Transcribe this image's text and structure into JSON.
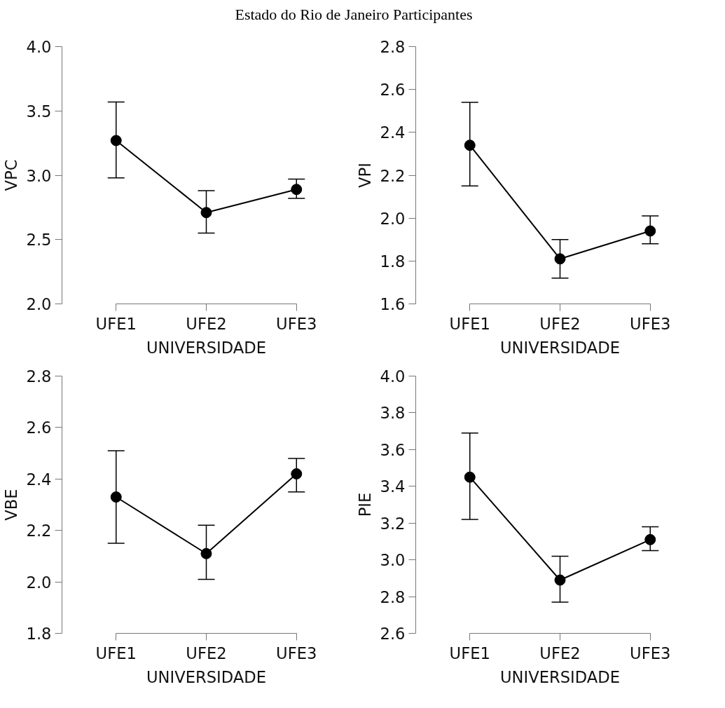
{
  "chart_data": [
    {
      "type": "line",
      "title": "Estado do Rio de Janeiro Participantes",
      "categories": [
        "UFE1",
        "UFE2",
        "UFE3"
      ],
      "xlabel": "UNIVERSIDADE",
      "ylabel": "VPC",
      "ylim": [
        2.0,
        4.0
      ],
      "yticks": [
        {
          "value": 2.0,
          "label": "2.0"
        },
        2.5,
        {
          "value": 3.0,
          "label": "3.0"
        },
        3.5,
        {
          "value": 4.0,
          "label": "4.0"
        }
      ],
      "marker": "circle",
      "line_style": "solid",
      "grid": false,
      "series": [
        {
          "color": "#000000",
          "values": [
            3.27,
            2.71,
            2.89
          ],
          "errors": [
            [
              2.98,
              3.57
            ],
            [
              2.55,
              2.88
            ],
            [
              2.82,
              2.97
            ]
          ]
        }
      ]
    },
    {
      "type": "line",
      "categories": [
        "UFE1",
        "UFE2",
        "UFE3"
      ],
      "xlabel": "UNIVERSIDADE",
      "ylabel": "VPI",
      "ylim": [
        1.6,
        2.8
      ],
      "yticks": [
        1.6,
        1.8,
        {
          "value": 2.0,
          "label": "2.0"
        },
        2.2,
        2.4,
        2.6,
        2.8
      ],
      "marker": "circle",
      "line_style": "solid",
      "grid": false,
      "series": [
        {
          "color": "#000000",
          "values": [
            2.34,
            1.81,
            1.94
          ],
          "errors": [
            [
              2.15,
              2.54
            ],
            [
              1.72,
              1.9
            ],
            [
              1.88,
              2.01
            ]
          ]
        }
      ]
    },
    {
      "type": "line",
      "categories": [
        "UFE1",
        "UFE2",
        "UFE3"
      ],
      "xlabel": "UNIVERSIDADE",
      "ylabel": "VBE",
      "ylim": [
        1.8,
        2.8
      ],
      "yticks": [
        1.8,
        {
          "value": 2.0,
          "label": "2.0"
        },
        2.2,
        2.4,
        2.6,
        2.8
      ],
      "marker": "circle",
      "line_style": "solid",
      "grid": false,
      "series": [
        {
          "color": "#000000",
          "values": [
            2.33,
            2.11,
            2.42
          ],
          "errors": [
            [
              2.15,
              2.51
            ],
            [
              2.01,
              2.22
            ],
            [
              2.35,
              2.48
            ]
          ]
        }
      ]
    },
    {
      "type": "line",
      "categories": [
        "UFE1",
        "UFE2",
        "UFE3"
      ],
      "xlabel": "UNIVERSIDADE",
      "ylabel": "PIE",
      "ylim": [
        2.6,
        4.0
      ],
      "yticks": [
        2.6,
        2.8,
        {
          "value": 3.0,
          "label": "3.0"
        },
        3.2,
        3.4,
        3.6,
        3.8,
        {
          "value": 4.0,
          "label": "4.0"
        }
      ],
      "marker": "circle",
      "line_style": "solid",
      "grid": false,
      "series": [
        {
          "color": "#000000",
          "values": [
            3.45,
            2.89,
            3.11
          ],
          "errors": [
            [
              3.22,
              3.69
            ],
            [
              2.77,
              3.02
            ],
            [
              3.05,
              3.18
            ]
          ]
        }
      ]
    }
  ]
}
